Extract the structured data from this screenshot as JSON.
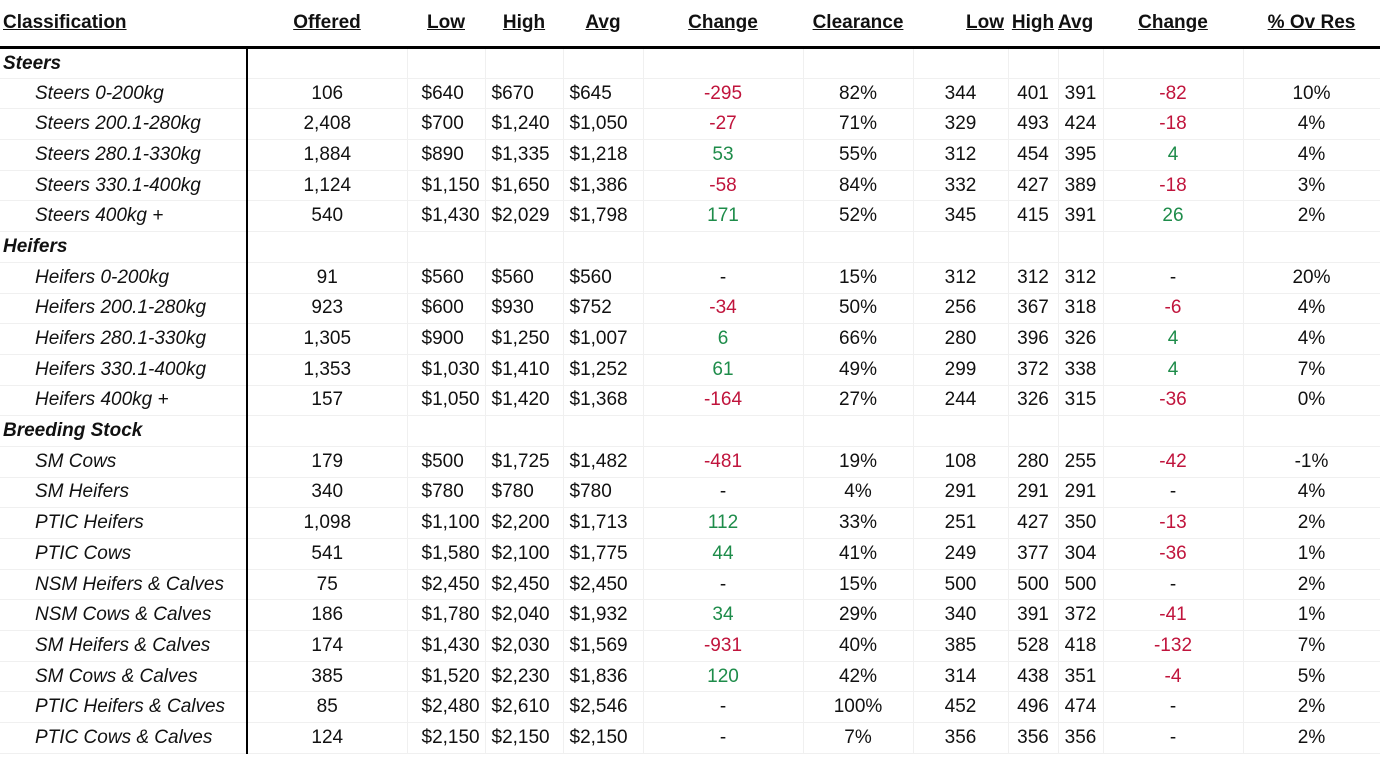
{
  "headers": [
    "Classification",
    "Offered",
    "Low",
    "High",
    "Avg",
    "Change",
    "Clearance",
    "Low",
    "High",
    "Avg",
    "Change",
    "% Ov Res"
  ],
  "colors": {
    "negative": "#c0143c",
    "positive": "#1e8c4a"
  },
  "sections": [
    {
      "name": "Steers",
      "rows": [
        {
          "classification": "Steers 0-200kg",
          "offered": "106",
          "low": "$640",
          "high": "$670",
          "avg": "$645",
          "change": "-295",
          "change_sign": "neg",
          "clearance": "82%",
          "ckg_low": "344",
          "ckg_high": "401",
          "ckg_avg": "391",
          "ckg_change": "-82",
          "ckg_change_sign": "neg",
          "ov_res": "10%"
        },
        {
          "classification": "Steers 200.1-280kg",
          "offered": "2,408",
          "low": "$700",
          "high": "$1,240",
          "avg": "$1,050",
          "change": "-27",
          "change_sign": "neg",
          "clearance": "71%",
          "ckg_low": "329",
          "ckg_high": "493",
          "ckg_avg": "424",
          "ckg_change": "-18",
          "ckg_change_sign": "neg",
          "ov_res": "4%"
        },
        {
          "classification": "Steers 280.1-330kg",
          "offered": "1,884",
          "low": "$890",
          "high": "$1,335",
          "avg": "$1,218",
          "change": "53",
          "change_sign": "pos",
          "clearance": "55%",
          "ckg_low": "312",
          "ckg_high": "454",
          "ckg_avg": "395",
          "ckg_change": "4",
          "ckg_change_sign": "pos",
          "ov_res": "4%"
        },
        {
          "classification": "Steers 330.1-400kg",
          "offered": "1,124",
          "low": "$1,150",
          "high": "$1,650",
          "avg": "$1,386",
          "change": "-58",
          "change_sign": "neg",
          "clearance": "84%",
          "ckg_low": "332",
          "ckg_high": "427",
          "ckg_avg": "389",
          "ckg_change": "-18",
          "ckg_change_sign": "neg",
          "ov_res": "3%"
        },
        {
          "classification": "Steers 400kg +",
          "offered": "540",
          "low": "$1,430",
          "high": "$2,029",
          "avg": "$1,798",
          "change": "171",
          "change_sign": "pos",
          "clearance": "52%",
          "ckg_low": "345",
          "ckg_high": "415",
          "ckg_avg": "391",
          "ckg_change": "26",
          "ckg_change_sign": "pos",
          "ov_res": "2%"
        }
      ]
    },
    {
      "name": "Heifers",
      "rows": [
        {
          "classification": "Heifers 0-200kg",
          "offered": "91",
          "low": "$560",
          "high": "$560",
          "avg": "$560",
          "change": "-",
          "change_sign": "none",
          "clearance": "15%",
          "ckg_low": "312",
          "ckg_high": "312",
          "ckg_avg": "312",
          "ckg_change": "-",
          "ckg_change_sign": "none",
          "ov_res": "20%"
        },
        {
          "classification": "Heifers 200.1-280kg",
          "offered": "923",
          "low": "$600",
          "high": "$930",
          "avg": "$752",
          "change": "-34",
          "change_sign": "neg",
          "clearance": "50%",
          "ckg_low": "256",
          "ckg_high": "367",
          "ckg_avg": "318",
          "ckg_change": "-6",
          "ckg_change_sign": "neg",
          "ov_res": "4%"
        },
        {
          "classification": "Heifers 280.1-330kg",
          "offered": "1,305",
          "low": "$900",
          "high": "$1,250",
          "avg": "$1,007",
          "change": "6",
          "change_sign": "pos",
          "clearance": "66%",
          "ckg_low": "280",
          "ckg_high": "396",
          "ckg_avg": "326",
          "ckg_change": "4",
          "ckg_change_sign": "pos",
          "ov_res": "4%"
        },
        {
          "classification": "Heifers 330.1-400kg",
          "offered": "1,353",
          "low": "$1,030",
          "high": "$1,410",
          "avg": "$1,252",
          "change": "61",
          "change_sign": "pos",
          "clearance": "49%",
          "ckg_low": "299",
          "ckg_high": "372",
          "ckg_avg": "338",
          "ckg_change": "4",
          "ckg_change_sign": "pos",
          "ov_res": "7%"
        },
        {
          "classification": "Heifers 400kg +",
          "offered": "157",
          "low": "$1,050",
          "high": "$1,420",
          "avg": "$1,368",
          "change": "-164",
          "change_sign": "neg",
          "clearance": "27%",
          "ckg_low": "244",
          "ckg_high": "326",
          "ckg_avg": "315",
          "ckg_change": "-36",
          "ckg_change_sign": "neg",
          "ov_res": "0%"
        }
      ]
    },
    {
      "name": "Breeding Stock",
      "rows": [
        {
          "classification": "SM Cows",
          "offered": "179",
          "low": "$500",
          "high": "$1,725",
          "avg": "$1,482",
          "change": "-481",
          "change_sign": "neg",
          "clearance": "19%",
          "ckg_low": "108",
          "ckg_high": "280",
          "ckg_avg": "255",
          "ckg_change": "-42",
          "ckg_change_sign": "neg",
          "ov_res": "-1%"
        },
        {
          "classification": "SM Heifers",
          "offered": "340",
          "low": "$780",
          "high": "$780",
          "avg": "$780",
          "change": "-",
          "change_sign": "none",
          "clearance": "4%",
          "ckg_low": "291",
          "ckg_high": "291",
          "ckg_avg": "291",
          "ckg_change": "-",
          "ckg_change_sign": "none",
          "ov_res": "4%"
        },
        {
          "classification": "PTIC Heifers",
          "offered": "1,098",
          "low": "$1,100",
          "high": "$2,200",
          "avg": "$1,713",
          "change": "112",
          "change_sign": "pos",
          "clearance": "33%",
          "ckg_low": "251",
          "ckg_high": "427",
          "ckg_avg": "350",
          "ckg_change": "-13",
          "ckg_change_sign": "neg",
          "ov_res": "2%"
        },
        {
          "classification": "PTIC Cows",
          "offered": "541",
          "low": "$1,580",
          "high": "$2,100",
          "avg": "$1,775",
          "change": "44",
          "change_sign": "pos",
          "clearance": "41%",
          "ckg_low": "249",
          "ckg_high": "377",
          "ckg_avg": "304",
          "ckg_change": "-36",
          "ckg_change_sign": "neg",
          "ov_res": "1%"
        },
        {
          "classification": "NSM Heifers & Calves",
          "offered": "75",
          "low": "$2,450",
          "high": "$2,450",
          "avg": "$2,450",
          "change": "-",
          "change_sign": "none",
          "clearance": "15%",
          "ckg_low": "500",
          "ckg_high": "500",
          "ckg_avg": "500",
          "ckg_change": "-",
          "ckg_change_sign": "none",
          "ov_res": "2%"
        },
        {
          "classification": "NSM Cows & Calves",
          "offered": "186",
          "low": "$1,780",
          "high": "$2,040",
          "avg": "$1,932",
          "change": "34",
          "change_sign": "pos",
          "clearance": "29%",
          "ckg_low": "340",
          "ckg_high": "391",
          "ckg_avg": "372",
          "ckg_change": "-41",
          "ckg_change_sign": "neg",
          "ov_res": "1%"
        },
        {
          "classification": "SM Heifers & Calves",
          "offered": "174",
          "low": "$1,430",
          "high": "$2,030",
          "avg": "$1,569",
          "change": "-931",
          "change_sign": "neg",
          "clearance": "40%",
          "ckg_low": "385",
          "ckg_high": "528",
          "ckg_avg": "418",
          "ckg_change": "-132",
          "ckg_change_sign": "neg",
          "ov_res": "7%"
        },
        {
          "classification": "SM Cows & Calves",
          "offered": "385",
          "low": "$1,520",
          "high": "$2,230",
          "avg": "$1,836",
          "change": "120",
          "change_sign": "pos",
          "clearance": "42%",
          "ckg_low": "314",
          "ckg_high": "438",
          "ckg_avg": "351",
          "ckg_change": "-4",
          "ckg_change_sign": "neg",
          "ov_res": "5%"
        },
        {
          "classification": "PTIC Heifers & Calves",
          "offered": "85",
          "low": "$2,480",
          "high": "$2,610",
          "avg": "$2,546",
          "change": "-",
          "change_sign": "none",
          "clearance": "100%",
          "ckg_low": "452",
          "ckg_high": "496",
          "ckg_avg": "474",
          "ckg_change": "-",
          "ckg_change_sign": "none",
          "ov_res": "2%"
        },
        {
          "classification": "PTIC Cows & Calves",
          "offered": "124",
          "low": "$2,150",
          "high": "$2,150",
          "avg": "$2,150",
          "change": "-",
          "change_sign": "none",
          "clearance": "7%",
          "ckg_low": "356",
          "ckg_high": "356",
          "ckg_avg": "356",
          "ckg_change": "-",
          "ckg_change_sign": "none",
          "ov_res": "2%"
        }
      ]
    }
  ]
}
